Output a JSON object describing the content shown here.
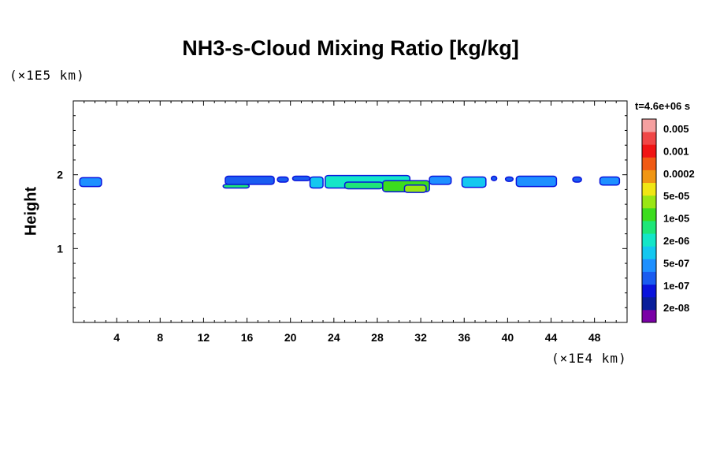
{
  "chart_data": {
    "type": "heatmap",
    "title": "NH3-s-Cloud Mixing Ratio [kg/kg]",
    "xlabel": "",
    "ylabel": "Height",
    "x_multiplier": "(×1E4 km)",
    "y_multiplier": "(×1E5 km)",
    "time_label": "t=4.6e+06 s",
    "xlim": [
      0,
      51
    ],
    "ylim": [
      0,
      3
    ],
    "x_ticks": [
      4,
      8,
      12,
      16,
      20,
      24,
      28,
      32,
      36,
      40,
      44,
      48
    ],
    "y_ticks": [
      1,
      2
    ],
    "colorbar": {
      "labels": [
        "0.005",
        "0.001",
        "0.0002",
        "5e-05",
        "1e-05",
        "2e-06",
        "5e-07",
        "1e-07",
        "2e-08"
      ],
      "colors": [
        "#7a00a6",
        "#0a1e9a",
        "#0a14dc",
        "#1a5cf0",
        "#1e90ff",
        "#14c8f0",
        "#14e6c8",
        "#1ee678",
        "#3cdc1e",
        "#9ae614",
        "#f0e614",
        "#f09614",
        "#f05a14",
        "#f01414",
        "#f04646",
        "#f5a0a0"
      ]
    },
    "cloud_patches": [
      {
        "x": [
          0.6,
          2.6
        ],
        "y": [
          1.84,
          1.96
        ],
        "level": 4
      },
      {
        "x": [
          13.8,
          16.2
        ],
        "y": [
          1.82,
          1.87
        ],
        "level": 7
      },
      {
        "x": [
          14.0,
          18.5
        ],
        "y": [
          1.87,
          1.98
        ],
        "level": 3
      },
      {
        "x": [
          18.8,
          19.8
        ],
        "y": [
          1.9,
          1.97
        ],
        "level": 3
      },
      {
        "x": [
          20.2,
          21.8
        ],
        "y": [
          1.92,
          1.98
        ],
        "level": 3
      },
      {
        "x": [
          21.8,
          23.0
        ],
        "y": [
          1.82,
          1.97
        ],
        "level": 5
      },
      {
        "x": [
          23.2,
          31.0
        ],
        "y": [
          1.82,
          1.99
        ],
        "level": 6
      },
      {
        "x": [
          25.0,
          28.5
        ],
        "y": [
          1.81,
          1.9
        ],
        "level": 7
      },
      {
        "x": [
          28.5,
          32.8
        ],
        "y": [
          1.77,
          1.92
        ],
        "level": 8
      },
      {
        "x": [
          30.5,
          32.5
        ],
        "y": [
          1.76,
          1.86
        ],
        "level": 9
      },
      {
        "x": [
          32.8,
          34.8
        ],
        "y": [
          1.87,
          1.98
        ],
        "level": 4
      },
      {
        "x": [
          35.8,
          38.0
        ],
        "y": [
          1.83,
          1.97
        ],
        "level": 5
      },
      {
        "x": [
          38.5,
          39.0
        ],
        "y": [
          1.92,
          1.98
        ],
        "level": 3
      },
      {
        "x": [
          39.8,
          40.5
        ],
        "y": [
          1.91,
          1.97
        ],
        "level": 3
      },
      {
        "x": [
          40.8,
          44.5
        ],
        "y": [
          1.84,
          1.98
        ],
        "level": 4
      },
      {
        "x": [
          46.0,
          46.8
        ],
        "y": [
          1.9,
          1.97
        ],
        "level": 3
      },
      {
        "x": [
          48.5,
          50.3
        ],
        "y": [
          1.86,
          1.97
        ],
        "level": 4
      }
    ]
  }
}
